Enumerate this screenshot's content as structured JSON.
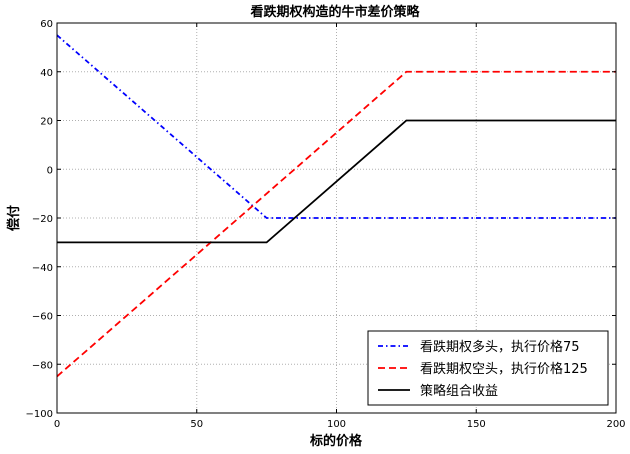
{
  "chart_data": {
    "type": "line",
    "title": "看跌期权构造的牛市差价策略",
    "xlabel": "标的价格",
    "ylabel": "偿付",
    "xlim": [
      0,
      200
    ],
    "ylim": [
      -100,
      60
    ],
    "x_ticks": [
      0,
      50,
      100,
      150,
      200
    ],
    "y_ticks": [
      -100,
      -80,
      -60,
      -40,
      -20,
      0,
      20,
      40,
      60
    ],
    "x_tick_labels": [
      "0",
      "50",
      "100",
      "150",
      "200"
    ],
    "y_tick_labels": [
      "−100",
      "−80",
      "−60",
      "−40",
      "−20",
      "0",
      "20",
      "40",
      "60"
    ],
    "grid": true,
    "legend_position": "lower-right",
    "series": [
      {
        "name": "看跌期权多头，执行价格75",
        "color": "#0000ff",
        "style": "dashdot",
        "x": [
          0,
          75,
          200
        ],
        "y": [
          55,
          -20,
          -20
        ]
      },
      {
        "name": "看跌期权空头，执行价格125",
        "color": "#ff0000",
        "style": "dashed",
        "x": [
          0,
          125,
          200
        ],
        "y": [
          -85,
          40,
          40
        ]
      },
      {
        "name": "策略组合收益",
        "color": "#000000",
        "style": "solid",
        "x": [
          0,
          75,
          125,
          200
        ],
        "y": [
          -30,
          -30,
          20,
          20
        ]
      }
    ]
  }
}
